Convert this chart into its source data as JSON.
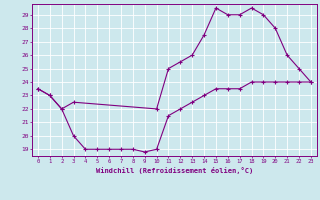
{
  "line1_x": [
    0,
    1,
    2,
    3,
    10,
    11,
    12,
    13,
    14,
    15,
    16,
    17,
    18,
    19,
    20,
    21,
    22,
    23
  ],
  "line1_y": [
    23.5,
    23,
    22,
    22.5,
    22,
    25,
    25.5,
    26,
    27.5,
    29.5,
    29,
    29,
    29.5,
    29,
    28,
    26,
    25,
    24
  ],
  "line2_x": [
    0,
    1,
    2,
    3,
    4,
    5,
    6,
    7,
    8,
    9,
    10,
    11,
    12,
    13,
    14,
    15,
    16,
    17,
    18,
    19,
    20,
    21,
    22,
    23
  ],
  "line2_y": [
    23.5,
    23,
    22,
    20,
    19,
    19,
    19,
    19,
    19,
    18.8,
    19,
    21.5,
    22,
    22.5,
    23,
    23.5,
    23.5,
    23.5,
    24,
    24,
    24,
    24,
    24,
    24
  ],
  "color": "#800080",
  "bg_color": "#cde8ed",
  "grid_color": "#ffffff",
  "xlabel": "Windchill (Refroidissement éolien,°C)",
  "xlim": [
    -0.5,
    23.5
  ],
  "ylim": [
    18.5,
    29.8
  ],
  "xticks": [
    0,
    1,
    2,
    3,
    4,
    5,
    6,
    7,
    8,
    9,
    10,
    11,
    12,
    13,
    14,
    15,
    16,
    17,
    18,
    19,
    20,
    21,
    22,
    23
  ],
  "yticks": [
    19,
    20,
    21,
    22,
    23,
    24,
    25,
    26,
    27,
    28,
    29
  ],
  "marker": "+",
  "markersize": 3,
  "linewidth": 0.8
}
